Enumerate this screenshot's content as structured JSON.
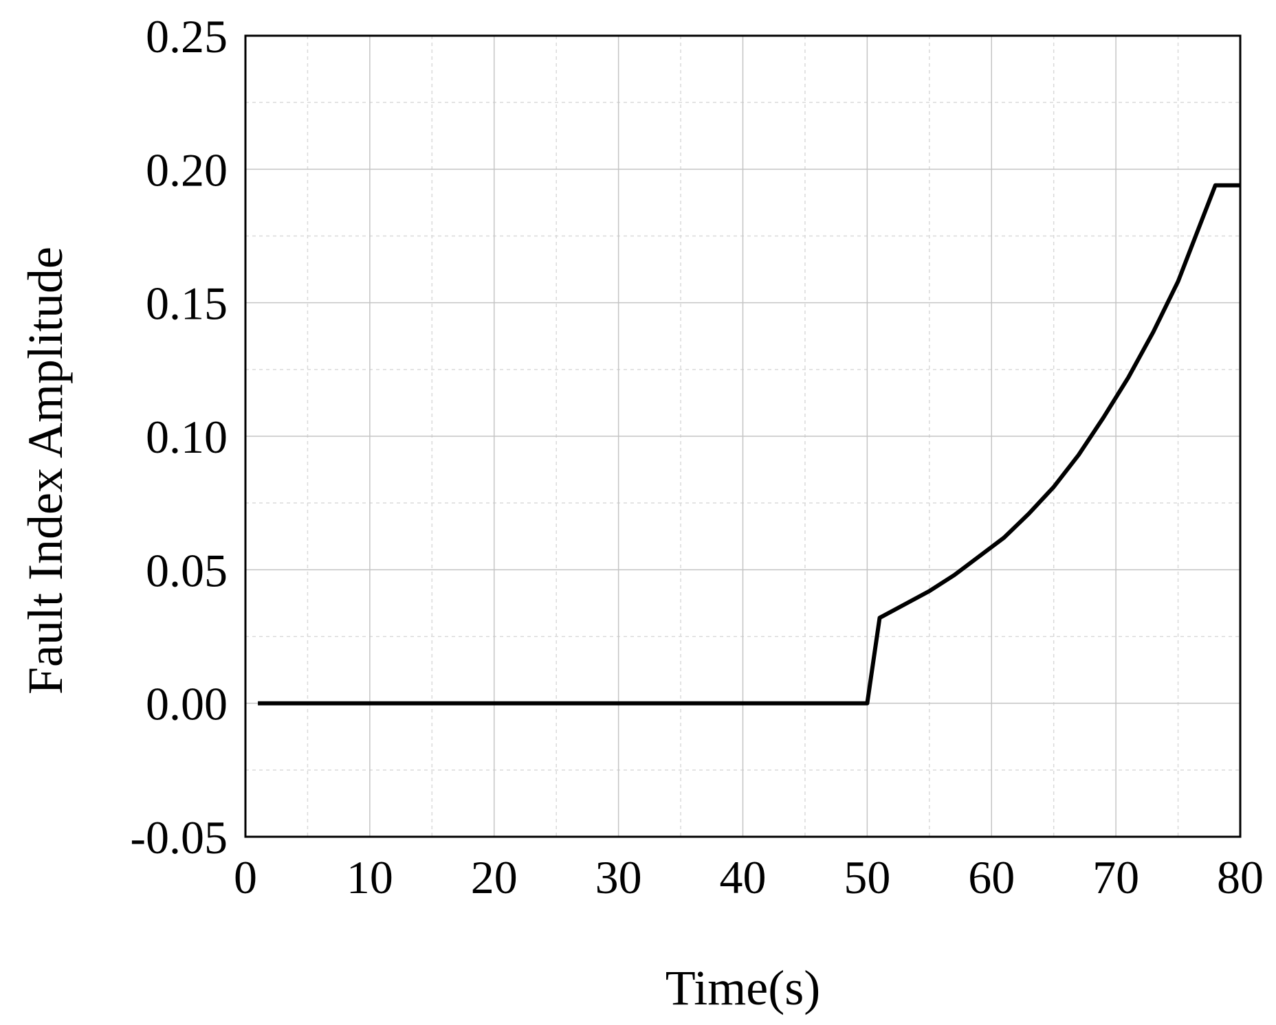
{
  "chart_data": {
    "type": "line",
    "title": "",
    "xlabel": "Time(s)",
    "ylabel": "Fault Index Amplitude",
    "xlim": [
      0,
      80
    ],
    "ylim": [
      -0.05,
      0.25
    ],
    "xticks": [
      "0",
      "10",
      "20",
      "30",
      "40",
      "50",
      "60",
      "70",
      "80"
    ],
    "yticks": [
      "-0.05",
      "0.00",
      "0.05",
      "0.10",
      "0.15",
      "0.20",
      "0.25"
    ],
    "grid": true,
    "legend": "none",
    "series": [
      {
        "color": "#000000",
        "x": [
          1,
          50,
          51,
          53,
          55,
          57,
          59,
          61,
          63,
          65,
          67,
          69,
          71,
          73,
          75,
          77,
          78,
          80
        ],
        "y": [
          0,
          0,
          0.032,
          0.037,
          0.042,
          0.048,
          0.055,
          0.062,
          0.071,
          0.081,
          0.093,
          0.107,
          0.122,
          0.139,
          0.158,
          0.182,
          0.194,
          0.194
        ]
      }
    ]
  }
}
